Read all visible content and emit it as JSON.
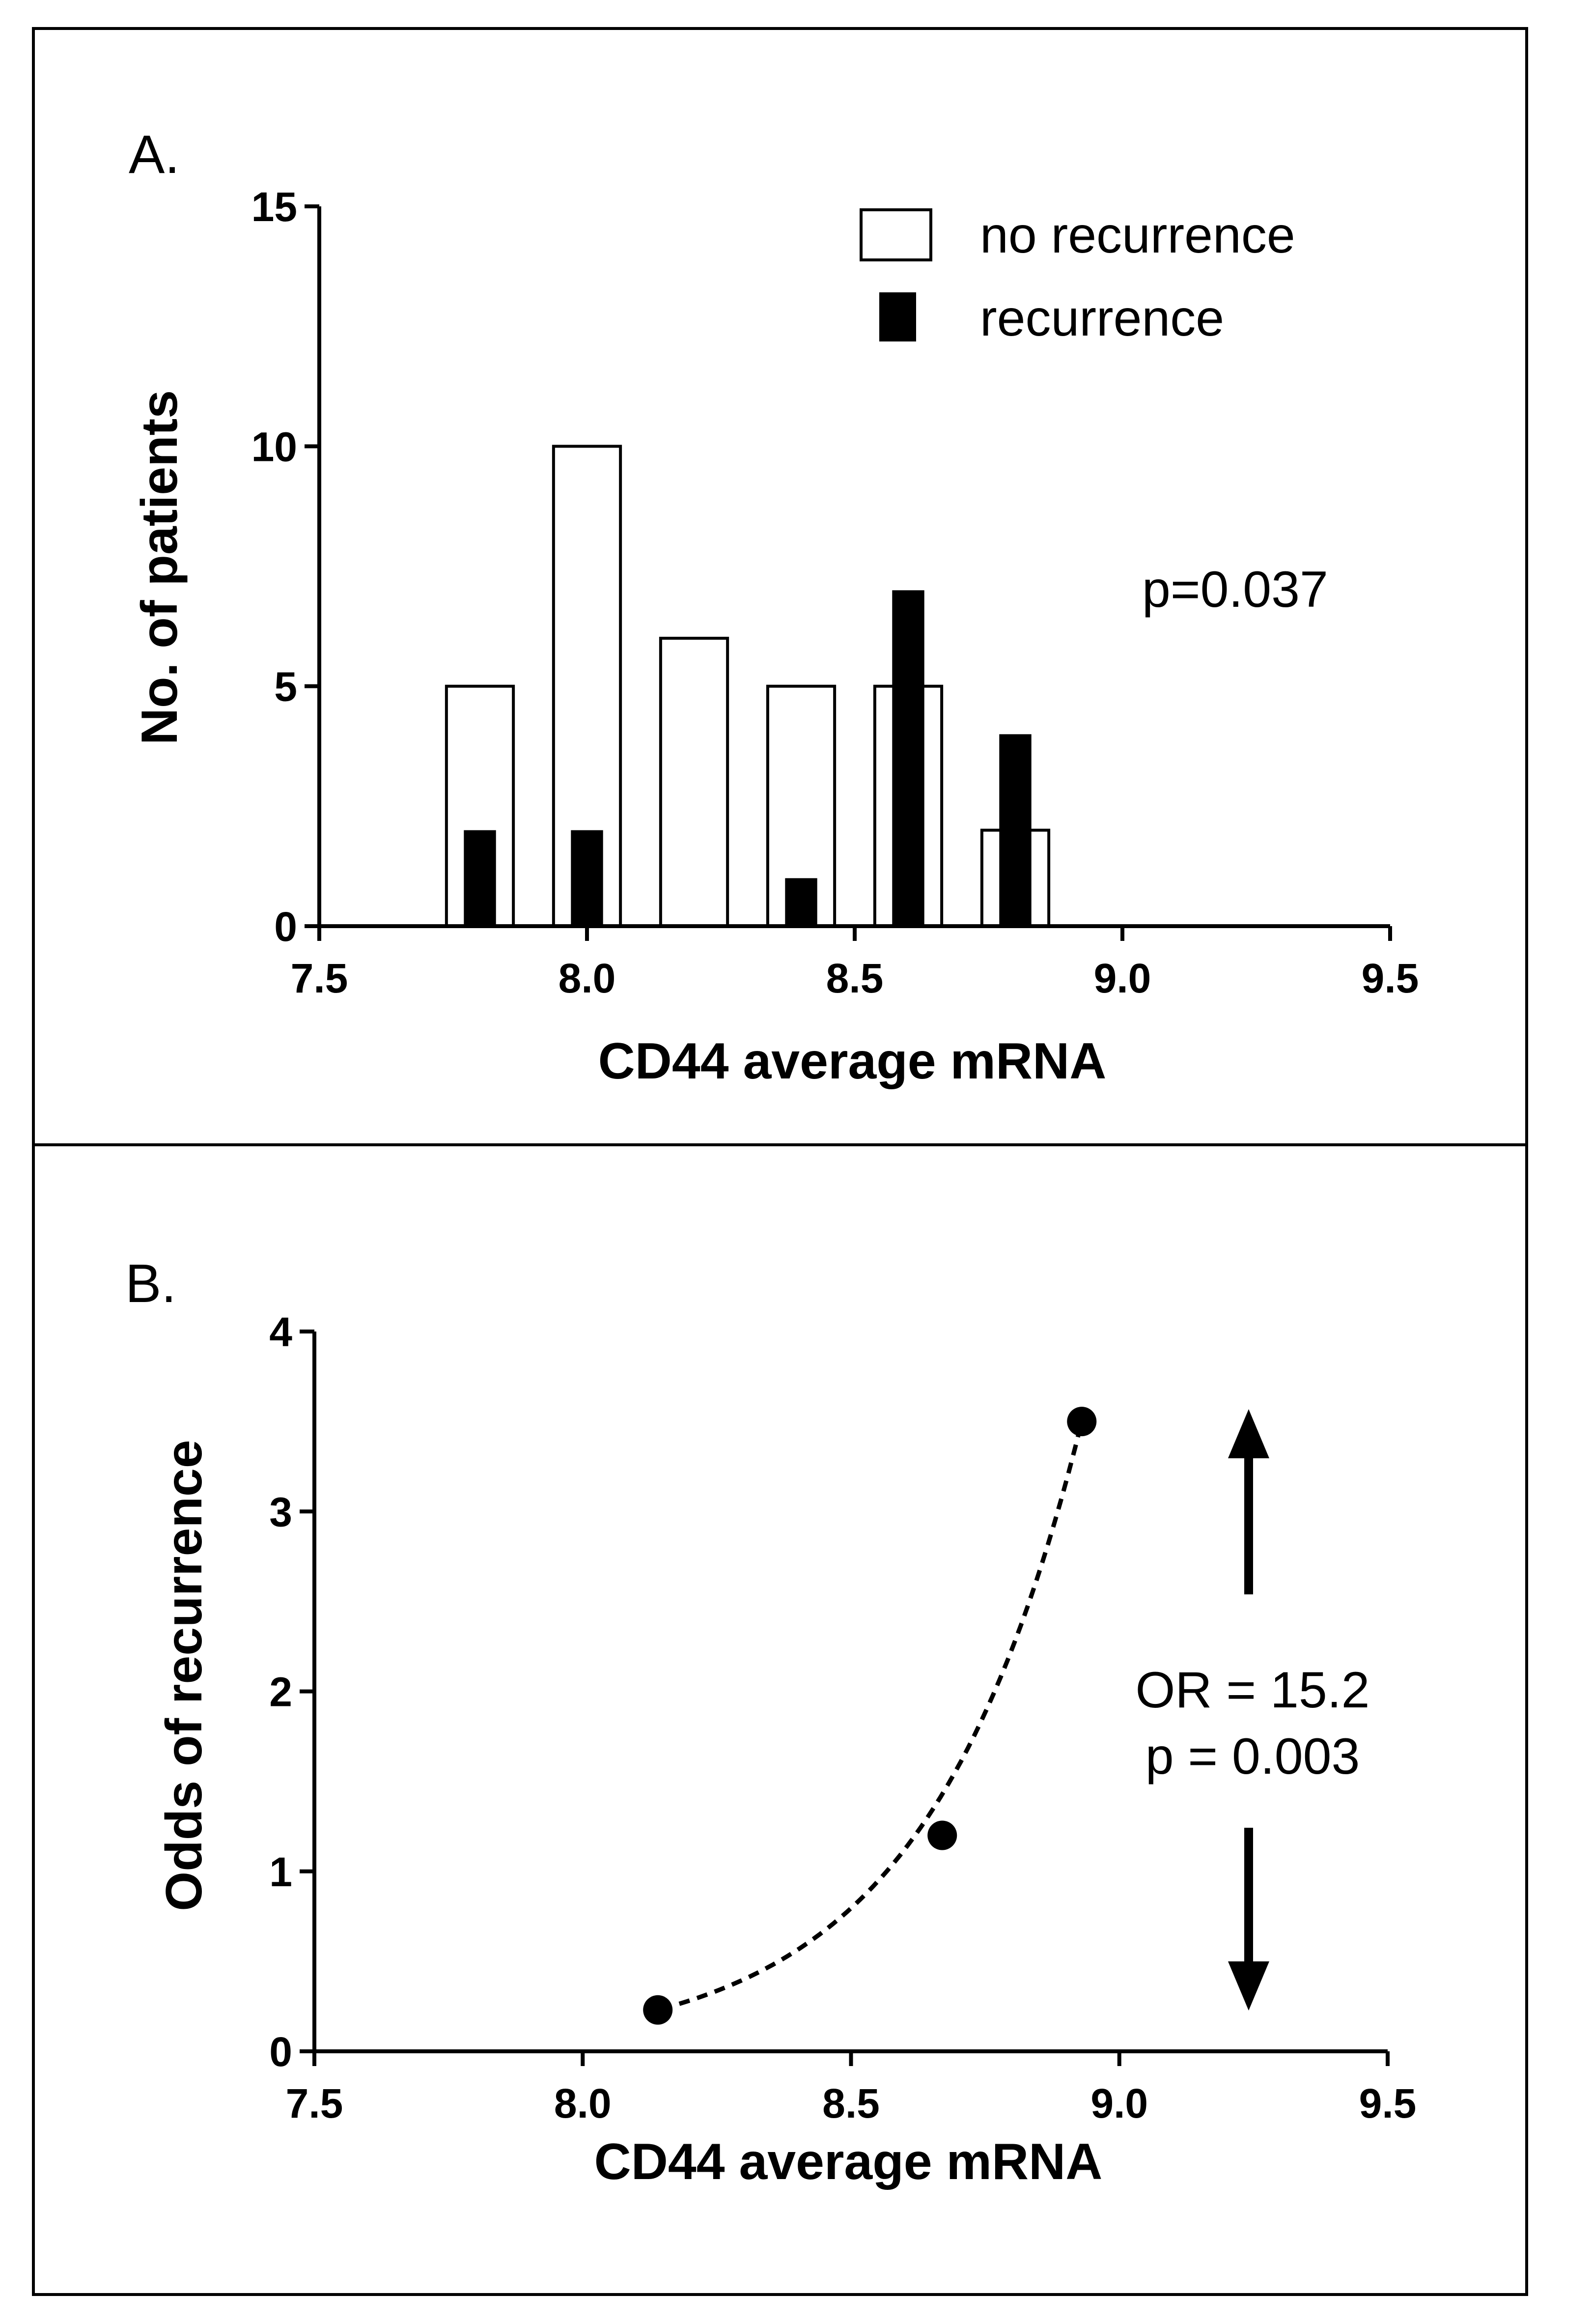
{
  "panels": [
    {
      "label": "A.",
      "annotation": "p=0.037",
      "legend": [
        "no recurrence",
        "recurrence"
      ]
    },
    {
      "label": "B.",
      "annotation_lines": [
        "OR = 15.2",
        "p = 0.003"
      ]
    }
  ],
  "chart_data": [
    {
      "type": "bar",
      "title": "",
      "xlabel": "CD44 average mRNA",
      "ylabel": "No. of patients",
      "xlim": [
        7.5,
        9.5
      ],
      "ylim": [
        0,
        15
      ],
      "xticks": [
        "7.5",
        "8.0",
        "8.5",
        "9.0",
        "9.5"
      ],
      "yticks": [
        "0",
        "5",
        "10",
        "15"
      ],
      "bin_centers": [
        7.8,
        8.0,
        8.2,
        8.4,
        8.6,
        8.8
      ],
      "series": [
        {
          "name": "no recurrence",
          "fill": "#ffffff",
          "values": [
            5,
            10,
            6,
            5,
            5,
            2
          ]
        },
        {
          "name": "recurrence",
          "fill": "#000000",
          "values": [
            2,
            2,
            0,
            1,
            7,
            4
          ]
        }
      ],
      "legend_position": "top-right",
      "grid": false
    },
    {
      "type": "scatter",
      "title": "",
      "xlabel": "CD44 average mRNA",
      "ylabel": "Odds of recurrence",
      "xlim": [
        7.5,
        9.5
      ],
      "ylim": [
        0,
        4
      ],
      "xticks": [
        "7.5",
        "8.0",
        "8.5",
        "9.0",
        "9.5"
      ],
      "yticks": [
        "0",
        "1",
        "2",
        "3",
        "4"
      ],
      "points": [
        {
          "x": 8.14,
          "y": 0.23
        },
        {
          "x": 8.67,
          "y": 1.2
        },
        {
          "x": 8.93,
          "y": 3.5
        }
      ],
      "fit_curve": "dashed exponential",
      "grid": false
    }
  ]
}
